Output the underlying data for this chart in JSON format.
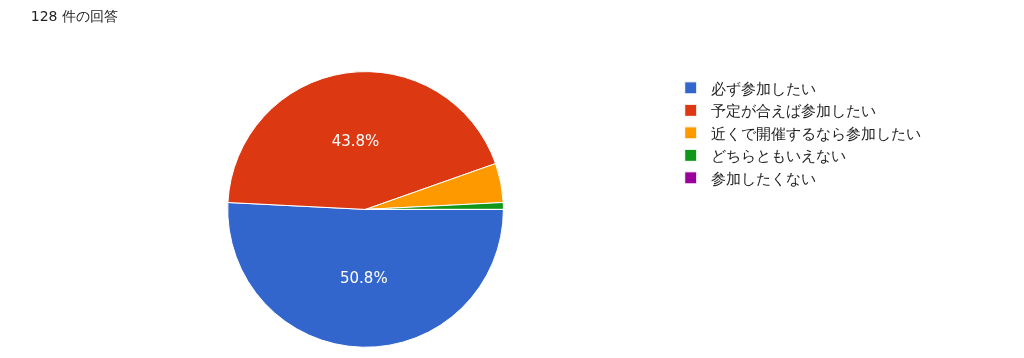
{
  "chart_data": {
    "type": "pie",
    "title": "128 件の回答",
    "categories": [
      "必ず参加したい",
      "予定が合えば参加したい",
      "近くで開催するなら参加したい",
      "どちらともいえない",
      "参加したくない"
    ],
    "values": [
      50.8,
      43.8,
      4.6,
      0.8,
      0
    ],
    "value_labels": [
      "50.8%",
      "43.8%",
      null,
      null,
      null
    ],
    "colors": [
      "#3366cc",
      "#dc3912",
      "#ff9900",
      "#109618",
      "#990099"
    ],
    "legend": "right"
  }
}
